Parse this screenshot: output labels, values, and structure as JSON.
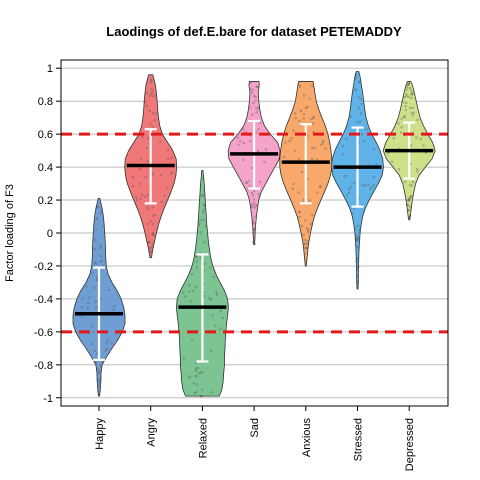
{
  "chart_data": {
    "type": "violin",
    "title": "Laodings of def.E.bare for dataset PETEMADDY",
    "xlabel": "",
    "ylabel": "Factor loading of F3",
    "ylim": [
      -1.05,
      1.05
    ],
    "yticks": [
      -1,
      -0.8,
      -0.6,
      -0.4,
      -0.2,
      0,
      0.2,
      0.4,
      0.6,
      0.8,
      1
    ],
    "ytick_labels": [
      "-1",
      "-0.8",
      "-0.6",
      "-0.4",
      "-0.2",
      "0",
      "0.2",
      "0.4",
      "0.6",
      "0.8",
      "1"
    ],
    "grid": true,
    "reference_lines": [
      0.6,
      -0.6
    ],
    "reference_line_color": "#e31a1c",
    "categories": [
      "Happy",
      "Angry",
      "Relaxed",
      "Sad",
      "Anxious",
      "Stressed",
      "Depressed"
    ],
    "series": [
      {
        "color": "#6f9ed4",
        "min": -0.99,
        "max": 0.21,
        "mean": -0.49,
        "lower": -0.77,
        "upper": -0.21,
        "shape": [
          [
            -0.99,
            0.02
          ],
          [
            -0.95,
            0.05
          ],
          [
            -0.9,
            0.07
          ],
          [
            -0.85,
            0.08
          ],
          [
            -0.8,
            0.12
          ],
          [
            -0.75,
            0.3
          ],
          [
            -0.7,
            0.5
          ],
          [
            -0.65,
            0.72
          ],
          [
            -0.6,
            0.9
          ],
          [
            -0.55,
            1.0
          ],
          [
            -0.5,
            1.0
          ],
          [
            -0.45,
            0.95
          ],
          [
            -0.4,
            0.85
          ],
          [
            -0.35,
            0.7
          ],
          [
            -0.3,
            0.5
          ],
          [
            -0.25,
            0.35
          ],
          [
            -0.2,
            0.28
          ],
          [
            -0.15,
            0.26
          ],
          [
            -0.1,
            0.25
          ],
          [
            -0.05,
            0.24
          ],
          [
            0.0,
            0.22
          ],
          [
            0.05,
            0.2
          ],
          [
            0.1,
            0.17
          ],
          [
            0.15,
            0.12
          ],
          [
            0.21,
            0.03
          ]
        ]
      },
      {
        "color": "#f07878",
        "min": -0.15,
        "max": 0.96,
        "mean": 0.41,
        "lower": 0.18,
        "upper": 0.63,
        "shape": [
          [
            -0.15,
            0.03
          ],
          [
            -0.1,
            0.08
          ],
          [
            -0.05,
            0.15
          ],
          [
            0.0,
            0.22
          ],
          [
            0.05,
            0.3
          ],
          [
            0.1,
            0.4
          ],
          [
            0.15,
            0.52
          ],
          [
            0.2,
            0.65
          ],
          [
            0.25,
            0.78
          ],
          [
            0.3,
            0.9
          ],
          [
            0.35,
            0.97
          ],
          [
            0.4,
            1.0
          ],
          [
            0.45,
            0.98
          ],
          [
            0.5,
            0.85
          ],
          [
            0.55,
            0.65
          ],
          [
            0.6,
            0.45
          ],
          [
            0.65,
            0.35
          ],
          [
            0.7,
            0.3
          ],
          [
            0.75,
            0.27
          ],
          [
            0.8,
            0.25
          ],
          [
            0.85,
            0.22
          ],
          [
            0.9,
            0.18
          ],
          [
            0.96,
            0.08
          ]
        ]
      },
      {
        "color": "#7cc492",
        "min": -0.99,
        "max": 0.38,
        "mean": -0.45,
        "lower": -0.78,
        "upper": -0.13,
        "shape": [
          [
            -0.99,
            0.65
          ],
          [
            -0.95,
            0.75
          ],
          [
            -0.9,
            0.8
          ],
          [
            -0.85,
            0.82
          ],
          [
            -0.8,
            0.85
          ],
          [
            -0.75,
            0.85
          ],
          [
            -0.7,
            0.87
          ],
          [
            -0.65,
            0.88
          ],
          [
            -0.6,
            0.9
          ],
          [
            -0.55,
            0.93
          ],
          [
            -0.5,
            0.97
          ],
          [
            -0.45,
            1.0
          ],
          [
            -0.4,
            0.97
          ],
          [
            -0.35,
            0.85
          ],
          [
            -0.3,
            0.68
          ],
          [
            -0.25,
            0.52
          ],
          [
            -0.2,
            0.4
          ],
          [
            -0.15,
            0.32
          ],
          [
            -0.1,
            0.27
          ],
          [
            -0.05,
            0.23
          ],
          [
            0.0,
            0.2
          ],
          [
            0.05,
            0.17
          ],
          [
            0.1,
            0.15
          ],
          [
            0.15,
            0.13
          ],
          [
            0.2,
            0.11
          ],
          [
            0.25,
            0.09
          ],
          [
            0.3,
            0.07
          ],
          [
            0.35,
            0.04
          ],
          [
            0.38,
            0.02
          ]
        ]
      },
      {
        "color": "#f5a3c8",
        "min": -0.07,
        "max": 0.92,
        "mean": 0.48,
        "lower": 0.27,
        "upper": 0.68,
        "shape": [
          [
            -0.07,
            0.02
          ],
          [
            0.0,
            0.04
          ],
          [
            0.05,
            0.06
          ],
          [
            0.1,
            0.09
          ],
          [
            0.15,
            0.13
          ],
          [
            0.2,
            0.18
          ],
          [
            0.25,
            0.28
          ],
          [
            0.3,
            0.45
          ],
          [
            0.35,
            0.62
          ],
          [
            0.4,
            0.8
          ],
          [
            0.45,
            0.97
          ],
          [
            0.5,
            1.0
          ],
          [
            0.55,
            0.9
          ],
          [
            0.6,
            0.62
          ],
          [
            0.65,
            0.4
          ],
          [
            0.7,
            0.28
          ],
          [
            0.75,
            0.22
          ],
          [
            0.8,
            0.18
          ],
          [
            0.85,
            0.16
          ],
          [
            0.9,
            0.2
          ],
          [
            0.92,
            0.18
          ]
        ]
      },
      {
        "color": "#f8a86a",
        "min": -0.2,
        "max": 0.92,
        "mean": 0.43,
        "lower": 0.18,
        "upper": 0.66,
        "shape": [
          [
            -0.2,
            0.02
          ],
          [
            -0.15,
            0.05
          ],
          [
            -0.1,
            0.08
          ],
          [
            -0.05,
            0.12
          ],
          [
            0.0,
            0.18
          ],
          [
            0.05,
            0.25
          ],
          [
            0.1,
            0.33
          ],
          [
            0.15,
            0.45
          ],
          [
            0.2,
            0.58
          ],
          [
            0.25,
            0.72
          ],
          [
            0.3,
            0.85
          ],
          [
            0.35,
            0.95
          ],
          [
            0.4,
            1.0
          ],
          [
            0.45,
            1.0
          ],
          [
            0.5,
            0.97
          ],
          [
            0.55,
            0.92
          ],
          [
            0.6,
            0.85
          ],
          [
            0.65,
            0.75
          ],
          [
            0.7,
            0.62
          ],
          [
            0.75,
            0.5
          ],
          [
            0.8,
            0.4
          ],
          [
            0.85,
            0.35
          ],
          [
            0.9,
            0.3
          ],
          [
            0.92,
            0.28
          ]
        ]
      },
      {
        "color": "#5fb3e8",
        "min": -0.34,
        "max": 0.98,
        "mean": 0.4,
        "lower": 0.16,
        "upper": 0.64,
        "shape": [
          [
            -0.34,
            0.02
          ],
          [
            -0.3,
            0.03
          ],
          [
            -0.2,
            0.04
          ],
          [
            -0.1,
            0.06
          ],
          [
            -0.05,
            0.08
          ],
          [
            0.0,
            0.1
          ],
          [
            0.05,
            0.14
          ],
          [
            0.1,
            0.2
          ],
          [
            0.15,
            0.3
          ],
          [
            0.2,
            0.45
          ],
          [
            0.25,
            0.62
          ],
          [
            0.3,
            0.8
          ],
          [
            0.35,
            0.95
          ],
          [
            0.4,
            1.0
          ],
          [
            0.45,
            0.97
          ],
          [
            0.5,
            0.87
          ],
          [
            0.55,
            0.72
          ],
          [
            0.6,
            0.55
          ],
          [
            0.65,
            0.42
          ],
          [
            0.7,
            0.33
          ],
          [
            0.75,
            0.28
          ],
          [
            0.8,
            0.24
          ],
          [
            0.85,
            0.2
          ],
          [
            0.9,
            0.15
          ],
          [
            0.95,
            0.1
          ],
          [
            0.98,
            0.05
          ]
        ]
      },
      {
        "color": "#cde08a",
        "min": 0.08,
        "max": 0.92,
        "mean": 0.5,
        "lower": 0.33,
        "upper": 0.67,
        "shape": [
          [
            0.08,
            0.02
          ],
          [
            0.1,
            0.04
          ],
          [
            0.15,
            0.08
          ],
          [
            0.2,
            0.12
          ],
          [
            0.25,
            0.18
          ],
          [
            0.3,
            0.25
          ],
          [
            0.35,
            0.38
          ],
          [
            0.4,
            0.62
          ],
          [
            0.45,
            0.88
          ],
          [
            0.5,
            1.0
          ],
          [
            0.55,
            0.9
          ],
          [
            0.6,
            0.72
          ],
          [
            0.65,
            0.55
          ],
          [
            0.7,
            0.42
          ],
          [
            0.75,
            0.34
          ],
          [
            0.8,
            0.27
          ],
          [
            0.85,
            0.2
          ],
          [
            0.9,
            0.12
          ],
          [
            0.92,
            0.06
          ]
        ]
      }
    ]
  }
}
